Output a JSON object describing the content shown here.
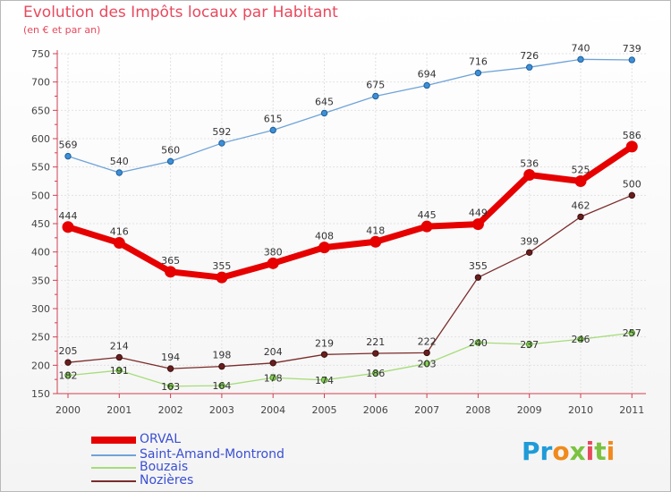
{
  "title": "Evolution des Impôts locaux par Habitant",
  "subtitle": "(en € et par an)",
  "logo": "Proxiti",
  "chart_data": {
    "type": "line",
    "title": "Evolution des Impôts locaux par Habitant",
    "subtitle": "(en € et par an)",
    "xlabel": "",
    "ylabel": "",
    "categories": [
      "2000",
      "2001",
      "2002",
      "2003",
      "2004",
      "2005",
      "2006",
      "2007",
      "2008",
      "2009",
      "2010",
      "2011"
    ],
    "ylim": [
      150,
      750
    ],
    "yticks": [
      150,
      200,
      250,
      300,
      350,
      400,
      450,
      500,
      550,
      600,
      650,
      700,
      750
    ],
    "grid": true,
    "series": [
      {
        "name": "ORVAL",
        "color": "#e60000",
        "values": [
          444,
          416,
          365,
          355,
          380,
          408,
          418,
          445,
          449,
          536,
          525,
          586
        ]
      },
      {
        "name": "Saint-Amand-Montrond",
        "color": "#6fa3d8",
        "values": [
          569,
          540,
          560,
          592,
          615,
          645,
          675,
          694,
          716,
          726,
          740,
          739
        ]
      },
      {
        "name": "Bouzais",
        "color": "#a6dc7a",
        "values": [
          182,
          191,
          163,
          164,
          178,
          174,
          186,
          203,
          240,
          237,
          246,
          257
        ]
      },
      {
        "name": "Nozières",
        "color": "#7b2b2b",
        "values": [
          205,
          214,
          194,
          198,
          204,
          219,
          221,
          222,
          355,
          399,
          462,
          500
        ]
      }
    ],
    "data_labels": [
      [
        "444",
        "416",
        "365",
        "355",
        "380",
        "408",
        "418",
        "445",
        "449",
        "536",
        "525",
        "586"
      ],
      [
        "569",
        "540",
        "560",
        "592",
        "615",
        "645",
        "675",
        "694",
        "716",
        "726",
        "740",
        "739"
      ],
      [
        "182",
        "191",
        "163",
        "164",
        "178",
        "174",
        "186",
        "203",
        "240",
        "237",
        "246",
        "257"
      ],
      [
        "205",
        "214",
        "194",
        "198",
        "204",
        "219",
        "221",
        "222",
        "355",
        "399",
        "462",
        "500"
      ]
    ]
  }
}
